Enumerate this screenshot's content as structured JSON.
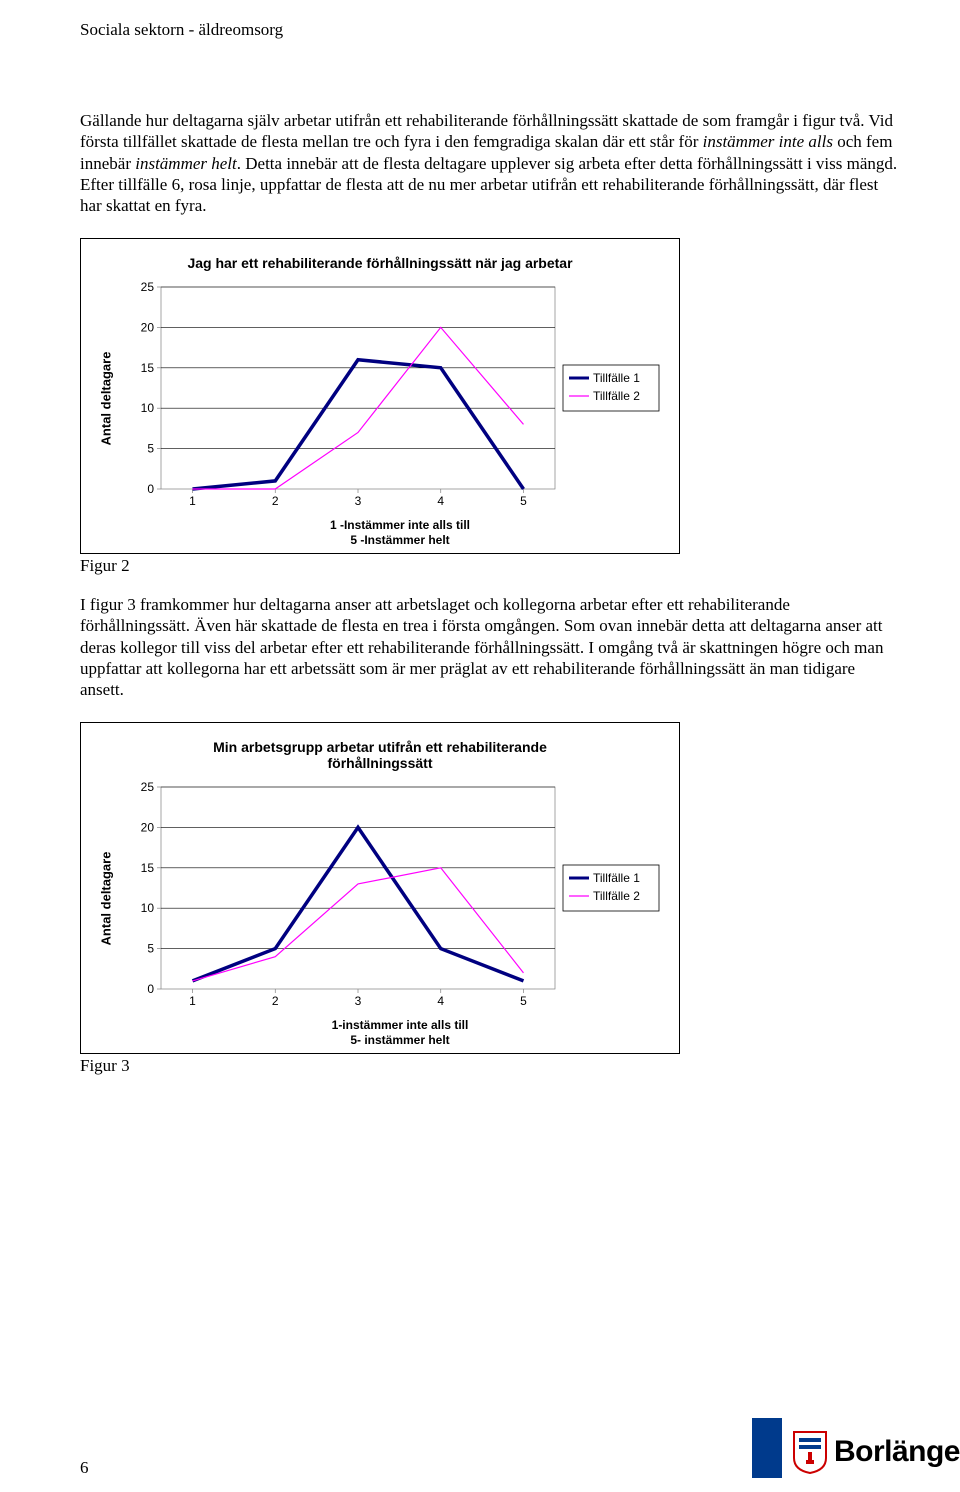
{
  "header": "Sociala sektorn - äldreomsorg",
  "para1_pre": "Gällande hur deltagarna själv arbetar utifrån ett rehabiliterande förhållningssätt skattade de som framgår i figur två. Vid första tillfället skattade de flesta mellan tre och fyra i den femgradiga skalan där ett står för ",
  "para1_it1": "instämmer inte alls",
  "para1_mid": " och fem innebär ",
  "para1_it2": "instämmer helt",
  "para1_post": ". Detta innebär att de flesta deltagare upplever sig arbeta efter detta förhållningssätt i viss mängd. Efter tillfälle 6, rosa linje, uppfattar de flesta att de nu mer arbetar utifrån ett rehabiliterande förhållningssätt, där flest har skattat en fyra.",
  "fig2_label": "Figur 2",
  "para2": "I figur 3 framkommer hur deltagarna anser att arbetslaget och kollegorna arbetar efter ett rehabiliterande förhållningssätt. Även här skattade de flesta en trea i första omgången. Som ovan innebär detta att deltagarna anser att deras kollegor till viss del arbetar efter ett rehabiliterande förhållningssätt. I omgång två är skattningen högre och man uppfattar att kollegorna har ett arbetssätt som är mer präglat av ett rehabiliterande förhållningssätt än man tidigare ansett.",
  "fig3_label": "Figur 3",
  "page_number": "6",
  "logo_text": "Borlänge",
  "chart1": {
    "type": "line",
    "title": "Jag har ett rehabiliterande förhållningssätt när jag arbetar",
    "ylabel": "Antal deltagare",
    "xlabel_line1": "1 -Instämmer inte alls till",
    "xlabel_line2": "5 -Instämmer helt",
    "x_categories": [
      "1",
      "2",
      "3",
      "4",
      "5"
    ],
    "ylim": [
      0,
      25
    ],
    "ytick_step": 5,
    "yticks": [
      "0",
      "5",
      "10",
      "15",
      "20",
      "25"
    ],
    "plot_bg": "#ffffff",
    "grid_color": "#000000",
    "series": [
      {
        "name": "Tillfälle 1",
        "color": "#000080",
        "width": 3.5,
        "values": [
          0,
          1,
          16,
          15,
          0
        ]
      },
      {
        "name": "Tillfälle 2",
        "color": "#ff00ff",
        "width": 1.2,
        "values": [
          0,
          0,
          7,
          20,
          8
        ]
      }
    ],
    "legend_border": "#000000",
    "legend_bg": "#ffffff",
    "legend_fontsize": 12
  },
  "chart2": {
    "type": "line",
    "title_line1": "Min arbetsgrupp arbetar utifrån ett rehabiliterande",
    "title_line2": "förhållningssätt",
    "ylabel": "Antal deltagare",
    "xlabel_line1": "1-instämmer inte alls till",
    "xlabel_line2": "5- instämmer helt",
    "x_categories": [
      "1",
      "2",
      "3",
      "4",
      "5"
    ],
    "ylim": [
      0,
      25
    ],
    "ytick_step": 5,
    "yticks": [
      "0",
      "5",
      "10",
      "15",
      "20",
      "25"
    ],
    "plot_bg": "#ffffff",
    "grid_color": "#000000",
    "series": [
      {
        "name": "Tillfälle 1",
        "color": "#000080",
        "width": 3.5,
        "values": [
          1,
          5,
          20,
          5,
          1
        ]
      },
      {
        "name": "Tillfälle 2",
        "color": "#ff00ff",
        "width": 1.2,
        "values": [
          1,
          4,
          13,
          15,
          2
        ]
      }
    ],
    "legend_border": "#000000",
    "legend_bg": "#ffffff",
    "legend_fontsize": 12
  }
}
